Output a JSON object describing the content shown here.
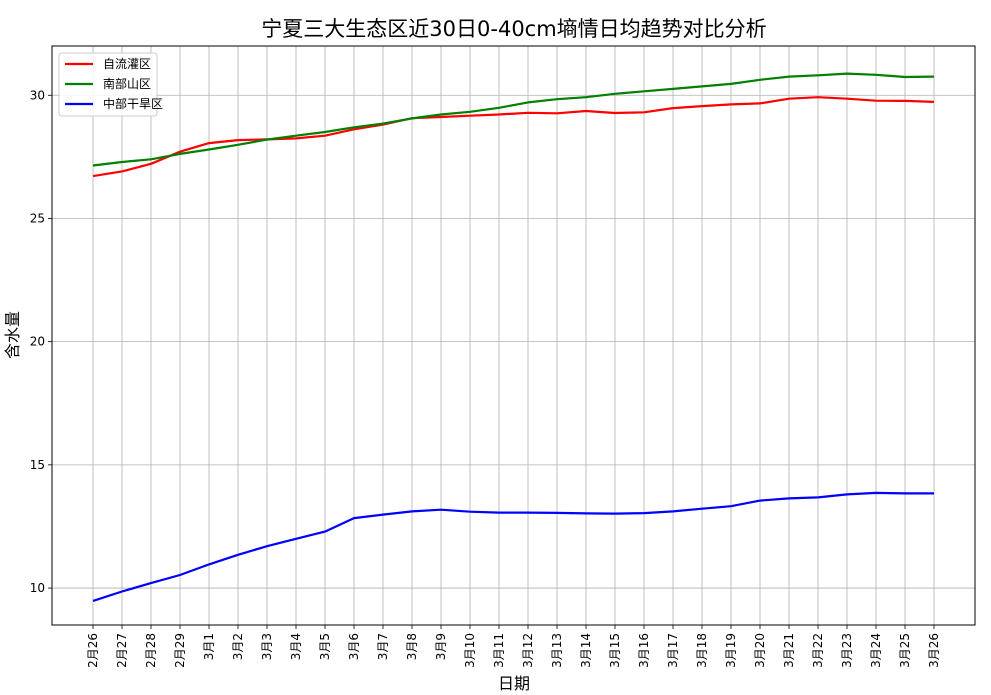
{
  "chart_data": {
    "type": "line",
    "title": "宁夏三大生态区近30日0-40cm墒情日均趋势对比分析",
    "xlabel": "日期",
    "ylabel": "含水量",
    "categories": [
      "2月26",
      "2月27",
      "2月28",
      "2月29",
      "3月1",
      "3月2",
      "3月3",
      "3月4",
      "3月5",
      "3月6",
      "3月7",
      "3月8",
      "3月9",
      "3月10",
      "3月11",
      "3月12",
      "3月13",
      "3月14",
      "3月15",
      "3月16",
      "3月17",
      "3月18",
      "3月19",
      "3月20",
      "3月21",
      "3月22",
      "3月23",
      "3月24",
      "3月25",
      "3月26"
    ],
    "ylim": [
      8.5,
      32.0
    ],
    "yticks": [
      10,
      15,
      20,
      25,
      30
    ],
    "grid": true,
    "legend_position": "top-left",
    "series": [
      {
        "name": "自流灌区",
        "color": "#ff0000",
        "values": [
          26.72,
          26.91,
          27.22,
          27.71,
          28.06,
          28.18,
          28.21,
          28.25,
          28.36,
          28.62,
          28.81,
          29.07,
          29.12,
          29.17,
          29.22,
          29.29,
          29.27,
          29.36,
          29.28,
          29.31,
          29.48,
          29.56,
          29.63,
          29.67,
          29.86,
          29.92,
          29.86,
          29.78,
          29.77,
          29.73
        ]
      },
      {
        "name": "南部山区",
        "color": "#008000",
        "values": [
          27.15,
          27.29,
          27.4,
          27.62,
          27.8,
          27.99,
          28.2,
          28.36,
          28.51,
          28.7,
          28.85,
          29.06,
          29.22,
          29.33,
          29.49,
          29.71,
          29.84,
          29.92,
          30.06,
          30.16,
          30.26,
          30.36,
          30.46,
          30.63,
          30.76,
          30.81,
          30.88,
          30.83,
          30.74,
          30.76
        ]
      },
      {
        "name": "中部干旱区",
        "color": "#0000ff",
        "values": [
          9.48,
          9.86,
          10.2,
          10.53,
          10.96,
          11.35,
          11.7,
          12.0,
          12.29,
          12.84,
          12.98,
          13.11,
          13.18,
          13.1,
          13.06,
          13.06,
          13.05,
          13.03,
          13.02,
          13.04,
          13.11,
          13.22,
          13.32,
          13.55,
          13.64,
          13.68,
          13.8,
          13.86,
          13.84,
          13.84
        ]
      }
    ]
  }
}
